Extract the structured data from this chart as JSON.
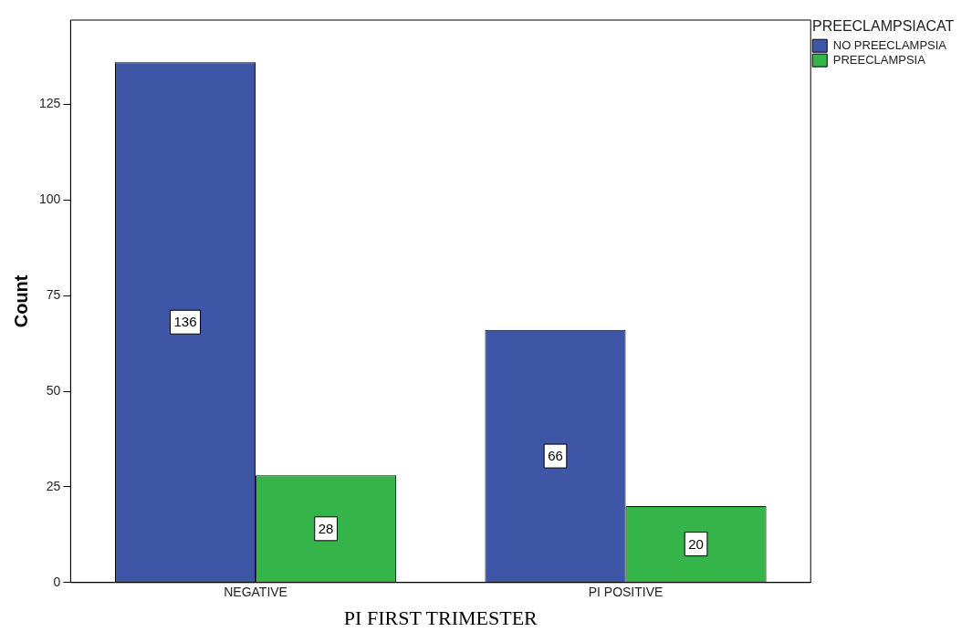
{
  "chart_data": {
    "type": "bar",
    "xlabel": "PI FIRST TRIMESTER",
    "ylabel": "Count",
    "legend_title": "PREECLAMPSIACAT",
    "categories": [
      "NEGATIVE",
      "PI POSITIVE"
    ],
    "series": [
      {
        "name": "NO PREECLAMPSIA",
        "color": "#3f56a6",
        "values": [
          136,
          66
        ]
      },
      {
        "name": "PREECLAMPSIA",
        "color": "#35b549",
        "values": [
          28,
          20
        ]
      }
    ],
    "ylim": [
      0,
      147
    ],
    "yticks": [
      0,
      25,
      50,
      75,
      100,
      125
    ],
    "grid": false,
    "legend": "top right",
    "data_labels": true
  }
}
